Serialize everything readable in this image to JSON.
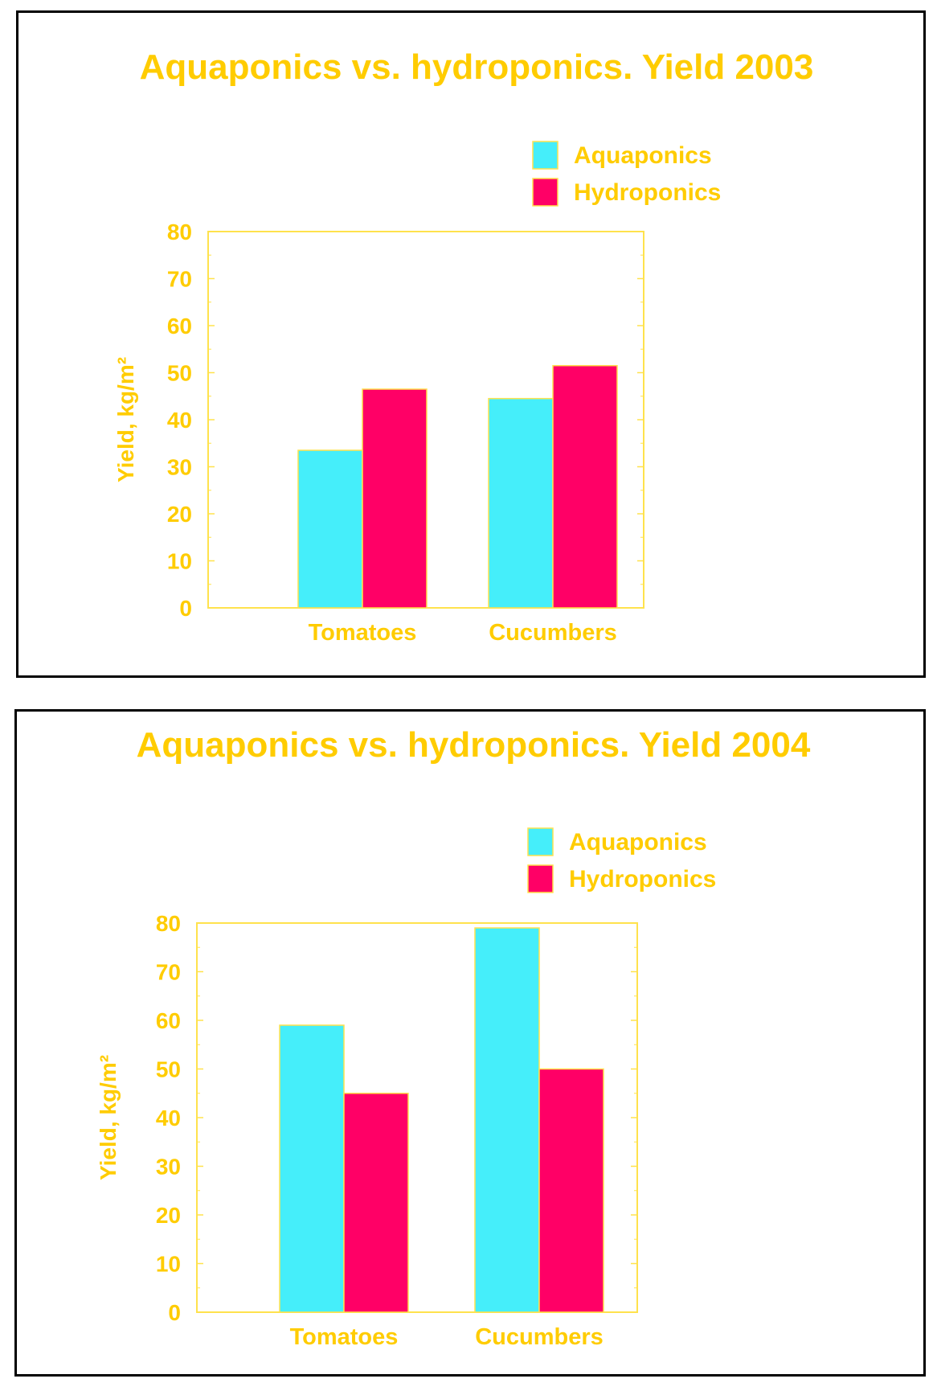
{
  "chart_data": [
    {
      "type": "bar",
      "title": "Aquaponics vs. hydroponics. Yield 2003",
      "xlabel": "",
      "ylabel": "Yield, kg/m²",
      "categories": [
        "Tomatoes",
        "Cucumbers"
      ],
      "series": [
        {
          "name": "Aquaponics",
          "values": [
            33.5,
            44.5
          ],
          "color": "#45EEFA"
        },
        {
          "name": "Hydroponics",
          "values": [
            46.5,
            51.5
          ],
          "color": "#FF0066"
        }
      ],
      "ylim": [
        0,
        80
      ],
      "yticks": [
        "0",
        "10",
        "20",
        "30",
        "40",
        "50",
        "60",
        "70",
        "80"
      ],
      "legend_position": "top-right",
      "grid": false
    },
    {
      "type": "bar",
      "title": "Aquaponics vs. hydroponics. Yield 2004",
      "xlabel": "",
      "ylabel": "Yield, kg/m²",
      "categories": [
        "Tomatoes",
        "Cucumbers"
      ],
      "series": [
        {
          "name": "Aquaponics",
          "values": [
            59,
            79
          ],
          "color": "#45EEFA"
        },
        {
          "name": "Hydroponics",
          "values": [
            45,
            50
          ],
          "color": "#FF0066"
        }
      ],
      "ylim": [
        0,
        80
      ],
      "yticks": [
        "0",
        "10",
        "20",
        "30",
        "40",
        "50",
        "60",
        "70",
        "80"
      ],
      "legend_position": "top-right",
      "grid": false
    }
  ],
  "colors": {
    "text": "#FFCC00",
    "axis": "#FFE24D",
    "border": "#000000",
    "background": "#FFFFFF"
  }
}
